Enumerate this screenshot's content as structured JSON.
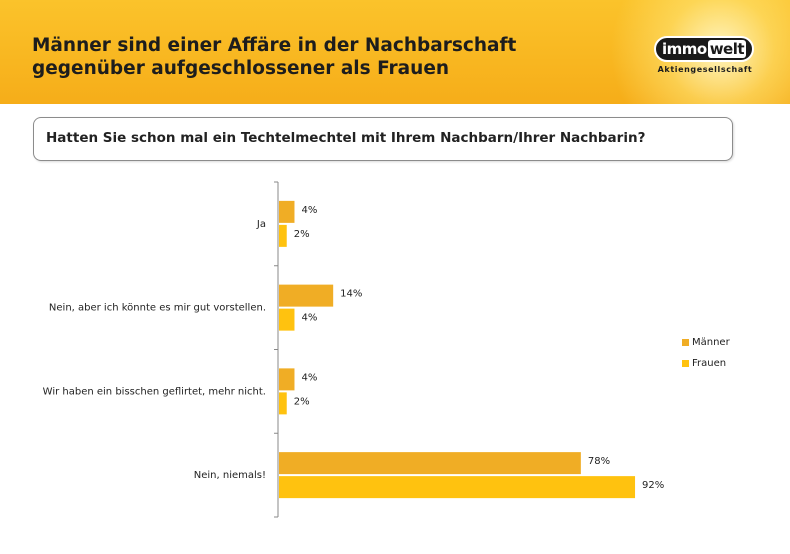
{
  "header": {
    "title": "Männer sind einer Affäre in der Nachbarschaft\ngegenüber aufgeschlossener als Frauen",
    "logo_part1": "immo",
    "logo_part2": "welt",
    "logo_subtitle": "Aktiengesellschaft"
  },
  "question": "Hatten Sie schon mal ein Techtelmechtel mit Ihrem Nachbarn/Ihrer Nachbarin?",
  "colors": {
    "header": "#f8b620",
    "maenner": "#f0ad25",
    "frauen": "#ffc20f",
    "axis": "#888888"
  },
  "chart_data": {
    "type": "bar",
    "orientation": "horizontal",
    "categories": [
      "Ja",
      "Nein, aber ich könnte es mir gut vorstellen.",
      "Wir haben ein bisschen geflirtet, mehr nicht.",
      "Nein, niemals!"
    ],
    "series": [
      {
        "name": "Männer",
        "values": [
          4,
          14,
          4,
          78
        ],
        "labels": [
          "4%",
          "14%",
          "4%",
          "78%"
        ]
      },
      {
        "name": "Frauen",
        "values": [
          2,
          4,
          2,
          92
        ],
        "labels": [
          "2%",
          "4%",
          "2%",
          "92%"
        ]
      }
    ],
    "xlim": [
      0,
      100
    ],
    "unit": "%",
    "legend": "right",
    "grid": false
  }
}
